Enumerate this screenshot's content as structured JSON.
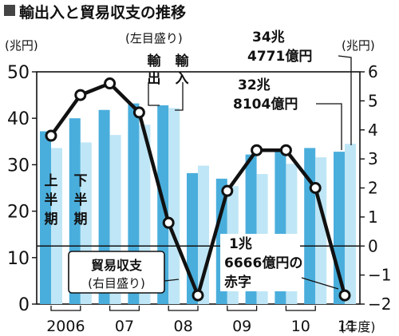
{
  "chart_data": {
    "type": "bar",
    "title": "輸出入と貿易収支の推移",
    "left_axis": {
      "unit_label": "(兆円)",
      "min": 0,
      "max": 50,
      "ticks": [
        "0",
        "10",
        "20",
        "30",
        "40",
        "50"
      ]
    },
    "right_axis": {
      "unit_label": "(兆円)",
      "min": -2,
      "max": 6,
      "ticks": [
        "-2",
        "-1",
        "0",
        "1",
        "2",
        "3",
        "4",
        "5",
        "6"
      ]
    },
    "bar_scale_label": "(左目盛り)",
    "x_axis_suffix": "(年度)",
    "year_labels": [
      "2006",
      "07",
      "08",
      "09",
      "10",
      "11"
    ],
    "half_labels": {
      "first": "上半期",
      "second": "下半期"
    },
    "period_labels": [
      "2006上",
      "2006下",
      "07上",
      "07下",
      "08上",
      "08下",
      "09上",
      "09下",
      "10上",
      "10下",
      "11上"
    ],
    "series": [
      {
        "name": "輸出",
        "color": "#4aaedc",
        "values": [
          37.2,
          40.0,
          41.8,
          43.2,
          42.8,
          28.2,
          27.0,
          32.2,
          33.2,
          33.6,
          32.8
        ]
      },
      {
        "name": "輸入",
        "color": "#bfe6f6",
        "values": [
          33.6,
          34.8,
          36.4,
          38.6,
          42.2,
          29.8,
          25.4,
          28.0,
          30.2,
          31.6,
          34.5
        ]
      }
    ],
    "line_series": {
      "name": "貿易収支",
      "label_lines": [
        "貿易収支",
        "(右目盛り)"
      ],
      "values": [
        3.8,
        5.2,
        5.6,
        4.6,
        0.8,
        -1.7,
        1.9,
        3.3,
        3.3,
        2.0,
        -1.7
      ]
    },
    "annotations": [
      {
        "lines": [
          "34兆",
          "4771億円"
        ]
      },
      {
        "lines": [
          "32兆",
          "8104億円"
        ]
      },
      {
        "lines": [
          "1兆",
          "6666億円の",
          "赤字"
        ]
      }
    ]
  }
}
